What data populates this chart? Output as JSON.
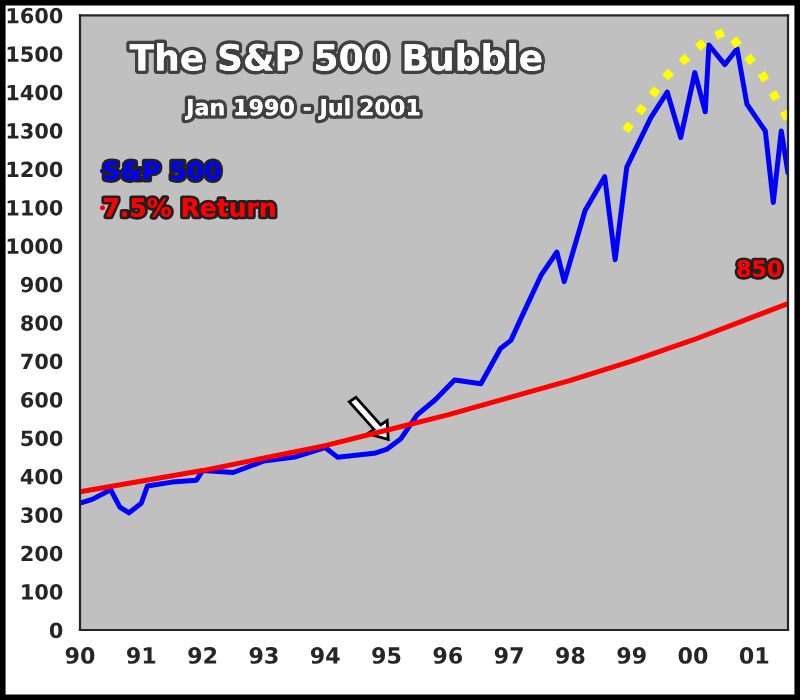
{
  "chart_data": {
    "type": "line",
    "title": "The S&P 500 Bubble",
    "subtitle": "Jan 1990 - Jul 2001",
    "xlim": [
      1990,
      2001.55
    ],
    "ylim": [
      0,
      1600
    ],
    "xticks": [
      {
        "value": 1990,
        "label": "90"
      },
      {
        "value": 1991,
        "label": "91"
      },
      {
        "value": 1992,
        "label": "92"
      },
      {
        "value": 1993,
        "label": "93"
      },
      {
        "value": 1994,
        "label": "94"
      },
      {
        "value": 1995,
        "label": "95"
      },
      {
        "value": 1996,
        "label": "96"
      },
      {
        "value": 1997,
        "label": "97"
      },
      {
        "value": 1998,
        "label": "98"
      },
      {
        "value": 1999,
        "label": "99"
      },
      {
        "value": 2000,
        "label": "00"
      },
      {
        "value": 2001,
        "label": "01"
      }
    ],
    "yticks": [
      0,
      100,
      200,
      300,
      400,
      500,
      600,
      700,
      800,
      900,
      1000,
      1100,
      1200,
      1300,
      1400,
      1500,
      1600
    ],
    "grid": false,
    "legend": "top left",
    "series": [
      {
        "name": "S&P 500",
        "color": "#0000ff",
        "line_style": "solid",
        "x": [
          1990,
          1990.2,
          1990.5,
          1990.65,
          1990.8,
          1991.0,
          1991.1,
          1991.5,
          1991.9,
          1992.0,
          1992.5,
          1993.0,
          1993.5,
          1994.0,
          1994.2,
          1994.5,
          1994.8,
          1995.0,
          1995.23,
          1995.5,
          1995.8,
          1996.11,
          1996.54,
          1996.86,
          1997.03,
          1997.19,
          1997.52,
          1997.78,
          1997.9,
          1998.24,
          1998.56,
          1998.73,
          1998.92,
          1999.31,
          1999.58,
          1999.8,
          2000.03,
          2000.2,
          2000.26,
          2000.52,
          2000.72,
          2000.88,
          2001.18,
          2001.31,
          2001.44,
          2001.55
        ],
        "values": [
          330,
          340,
          365,
          320,
          305,
          330,
          375,
          385,
          390,
          415,
          410,
          440,
          450,
          475,
          450,
          455,
          460,
          470,
          497,
          560,
          600,
          651,
          641,
          733,
          754,
          810,
          923,
          984,
          907,
          1092,
          1180,
          964,
          1205,
          1333,
          1400,
          1282,
          1451,
          1349,
          1523,
          1472,
          1513,
          1369,
          1299,
          1113,
          1299,
          1190
        ]
      },
      {
        "name": "7.5% Return",
        "color": "#ff0000",
        "line_style": "solid",
        "x": [
          1990,
          1992,
          1994,
          1995,
          1996,
          1997,
          1998,
          1999,
          2000,
          2001.55
        ],
        "values": [
          360,
          415,
          480,
          520,
          560,
          605,
          650,
          700,
          755,
          850
        ]
      },
      {
        "color": "#ffff00",
        "line_style": "dotted",
        "x": [
          1998.9,
          1999.05,
          1999.58,
          2000.23,
          2000.55,
          2001.11,
          2001.55
        ],
        "values": [
          1300,
          1333,
          1444,
          1538,
          1559,
          1451,
          1330
        ]
      }
    ],
    "annotations": [
      {
        "text": "850",
        "x": 2001.55,
        "y": 850
      }
    ]
  }
}
